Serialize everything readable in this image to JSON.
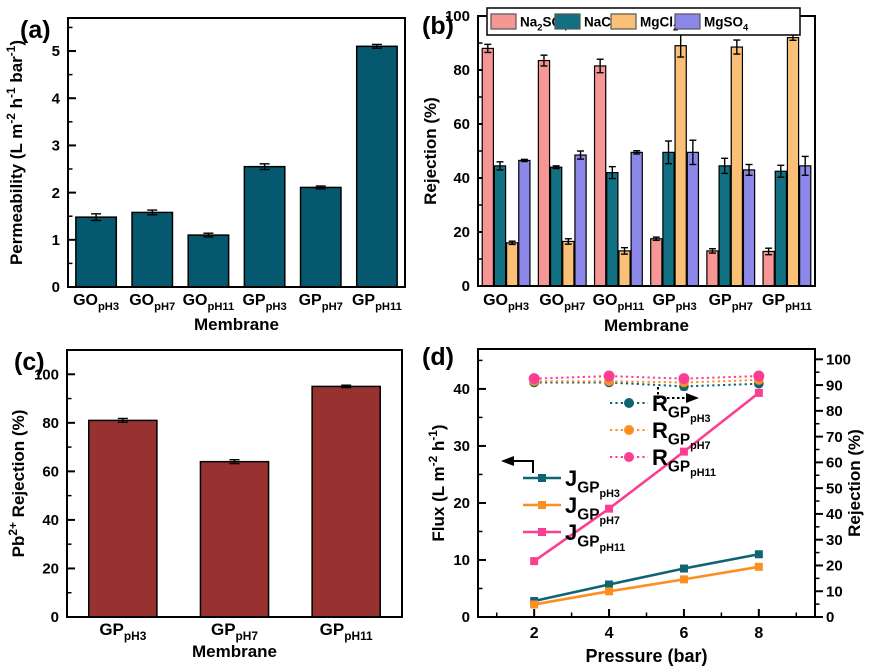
{
  "figure_title": "Membrane permeability, salt rejection, Pb rejection and pressure-flux figure",
  "chart_data": [
    {
      "panel": "a",
      "panel_label": "(a)",
      "type": "bar",
      "xlabel": "Membrane",
      "ylabel": "Permeability (L m^{-2} h^{-1} bar^{-1})",
      "categories": [
        "GO_{pH3}",
        "GO_{pH7}",
        "GO_{pH11}",
        "GP_{pH3}",
        "GP_{pH7}",
        "GP_{pH11}"
      ],
      "values": [
        1.48,
        1.58,
        1.1,
        2.55,
        2.11,
        5.1
      ],
      "errors": [
        0.07,
        0.05,
        0.04,
        0.06,
        0.03,
        0.04
      ],
      "bar_color": "#05586e",
      "ylim": [
        0,
        5.7
      ],
      "yticks_major": 1,
      "yticks_minor": 0.5,
      "grid": "off"
    },
    {
      "panel": "b",
      "panel_label": "(b)",
      "type": "grouped-bar",
      "xlabel": "Membrane",
      "ylabel": "Rejection (%)",
      "categories": [
        "GO_{pH3}",
        "GO_{pH7}",
        "GO_{pH11}",
        "GP_{pH3}",
        "GP_{pH7}",
        "GP_{pH11}"
      ],
      "series": [
        {
          "name": "Na_{2}SO_{4}",
          "color": "#f79795",
          "values": [
            88,
            83.5,
            81.5,
            17.5,
            13,
            12.8
          ],
          "errors": [
            1.5,
            2,
            2.5,
            0.6,
            0.8,
            1.2
          ]
        },
        {
          "name": "NaCl",
          "color": "#117183",
          "values": [
            44.5,
            44,
            42,
            49.5,
            44.5,
            42.5
          ],
          "errors": [
            1.5,
            0.5,
            2.2,
            4.2,
            2.8,
            2.2
          ]
        },
        {
          "name": "MgCl_{2}",
          "color": "#fac077",
          "values": [
            16,
            16.5,
            13,
            89,
            88.5,
            92
          ],
          "errors": [
            0.6,
            1,
            1.2,
            4.2,
            2.6,
            1
          ]
        },
        {
          "name": "MgSO_{4}",
          "color": "#8b88e9",
          "values": [
            46.5,
            48.5,
            49.5,
            49.5,
            43,
            44.5
          ],
          "errors": [
            0.4,
            1.5,
            0.6,
            4.5,
            2,
            3.5
          ]
        }
      ],
      "ylim": [
        0,
        100
      ],
      "yticks_major": 20,
      "yticks_minor": 10,
      "legend_position": "top-inside",
      "grid": "off"
    },
    {
      "panel": "c",
      "panel_label": "(c)",
      "type": "bar",
      "xlabel": "Membrane",
      "ylabel": "Pb^{2+} Rejection (%)",
      "categories": [
        "GP_{pH3}",
        "GP_{pH7}",
        "GP_{pH11}"
      ],
      "values": [
        81,
        64,
        95
      ],
      "errors": [
        0.8,
        0.8,
        0.5
      ],
      "bar_color": "#973230",
      "ylim": [
        0,
        110
      ],
      "yticks_major": 20,
      "yticks_minor": 10,
      "grid": "off"
    },
    {
      "panel": "d",
      "panel_label": "(d)",
      "type": "dual-line",
      "xlabel": "Pressure (bar)",
      "ylabel_left": "Flux (L m^{-2} h^{-1})",
      "ylabel_right": "Rejection (%)",
      "x": [
        2,
        4,
        6,
        8
      ],
      "xlim": [
        0.5,
        9.5
      ],
      "xticks_major": 2,
      "xticks_minor": 1,
      "ylim_left": [
        0,
        47
      ],
      "yticks_left_major": 10,
      "yticks_left_minor": 5,
      "ylim_right": [
        0,
        104
      ],
      "yticks_right_major": 10,
      "yticks_right_minor": 5,
      "series_left": [
        {
          "name": "J_{GP_{pH3}}",
          "color": "#0f6373",
          "marker": "square",
          "line": "solid",
          "values": [
            2.8,
            5.7,
            8.5,
            11.0
          ]
        },
        {
          "name": "J_{GP_{pH7}}",
          "color": "#fd8f20",
          "marker": "square",
          "line": "solid",
          "values": [
            2.2,
            4.5,
            6.6,
            8.8
          ]
        },
        {
          "name": "J_{GP_{pH11}}",
          "color": "#fb3e92",
          "marker": "square",
          "line": "solid",
          "values": [
            9.8,
            19.0,
            29.0,
            39.3
          ]
        }
      ],
      "series_right": [
        {
          "name": "R_{GP_{pH3}}",
          "color": "#0f6373",
          "marker": "circle",
          "line": "dotted",
          "values": [
            91,
            91,
            89.5,
            90.5
          ],
          "errors": [
            0.9,
            0.9,
            1.3,
            1.0
          ]
        },
        {
          "name": "R_{GP_{pH7}}",
          "color": "#fd8f20",
          "marker": "circle",
          "line": "dotted",
          "values": [
            91.5,
            91.5,
            91,
            92
          ],
          "errors": [
            0.8,
            0.8,
            0.9,
            0.8
          ]
        },
        {
          "name": "R_{GP_{pH11}}",
          "color": "#fb3e92",
          "marker": "circle",
          "line": "dotted",
          "values": [
            92.5,
            93.5,
            92.5,
            93.5
          ],
          "errors": [
            0.8,
            0.8,
            0.9,
            0.8
          ]
        }
      ],
      "left_axis_arrow": "solid-left",
      "right_axis_arrow": "dotted-right",
      "grid": "off"
    }
  ]
}
